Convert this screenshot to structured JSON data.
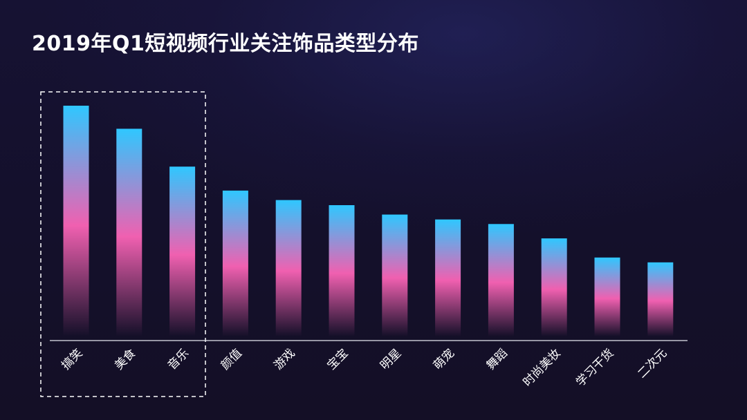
{
  "title": "2019年Q1短视频行业关注饰品类型分布",
  "colors": {
    "bar_top": "#2fc7ff",
    "bar_mid": "#f060b0",
    "bar_bottom_fade": "#141029",
    "axis": "#e8e8f0",
    "highlight_box": "#ffffff"
  },
  "chart_data": {
    "type": "bar",
    "title": "2019年Q1短视频行业关注饰品类型分布",
    "categories": [
      "搞笑",
      "美食",
      "音乐",
      "颜值",
      "游戏",
      "宝宝",
      "明星",
      "萌宠",
      "舞蹈",
      "时尚美妆",
      "学习干货",
      "二次元"
    ],
    "values": [
      100,
      90,
      73.6,
      63.2,
      59.1,
      56.9,
      52.8,
      50.7,
      48.7,
      42.5,
      34.2,
      32.1
    ],
    "ylim": [
      0,
      100
    ],
    "grid": false,
    "axis_ticks_shown": false,
    "highlighted_categories": [
      "搞笑",
      "美食",
      "音乐"
    ]
  }
}
